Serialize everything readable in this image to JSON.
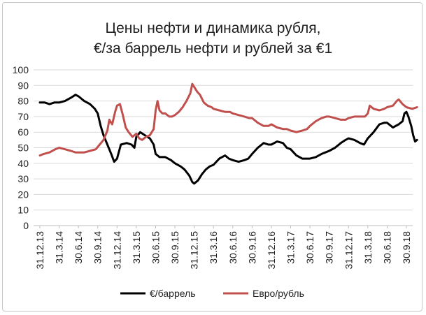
{
  "chart_data": {
    "type": "line",
    "title_line1": "Цены нефти и динамика рубля,",
    "title_line2": "€/за баррель нефти и рублей за  €1",
    "ylim": [
      0,
      100
    ],
    "yticks": [
      0,
      10,
      20,
      30,
      40,
      50,
      60,
      70,
      80,
      90,
      100
    ],
    "grid": "horizontal",
    "legend_position": "bottom",
    "x_tick_labels": [
      "31.12.13",
      "31.3.14",
      "30.6.14",
      "30.9.14",
      "31.12.14",
      "31.3.15",
      "30.6.15",
      "30.9.15",
      "31.12.15",
      "31.3.16",
      "30.6.16",
      "30.9.16",
      "31.12.16",
      "31.3.17",
      "30.6.17",
      "30.9.17",
      "31.12.17",
      "31.3.18",
      "30.6.18",
      "30.9.18"
    ],
    "series": [
      {
        "name": "€/баррель",
        "color": "#000000",
        "points": [
          [
            0,
            79
          ],
          [
            0.25,
            79
          ],
          [
            0.5,
            78
          ],
          [
            0.75,
            79
          ],
          [
            1,
            79
          ],
          [
            1.3,
            80
          ],
          [
            1.6,
            82
          ],
          [
            1.85,
            84
          ],
          [
            2,
            83
          ],
          [
            2.3,
            80
          ],
          [
            2.6,
            78
          ],
          [
            2.85,
            75
          ],
          [
            3,
            72
          ],
          [
            3.15,
            64
          ],
          [
            3.3,
            58
          ],
          [
            3.5,
            52
          ],
          [
            3.7,
            46
          ],
          [
            3.85,
            41
          ],
          [
            4,
            43
          ],
          [
            4.2,
            52
          ],
          [
            4.5,
            53
          ],
          [
            4.75,
            52
          ],
          [
            4.9,
            50
          ],
          [
            5,
            57
          ],
          [
            5.2,
            60
          ],
          [
            5.45,
            58
          ],
          [
            5.7,
            56
          ],
          [
            5.9,
            52
          ],
          [
            6,
            46
          ],
          [
            6.2,
            44
          ],
          [
            6.5,
            44
          ],
          [
            6.8,
            42
          ],
          [
            7,
            40
          ],
          [
            7.3,
            38
          ],
          [
            7.5,
            36
          ],
          [
            7.75,
            32
          ],
          [
            7.9,
            28
          ],
          [
            8,
            27
          ],
          [
            8.2,
            29
          ],
          [
            8.4,
            33
          ],
          [
            8.6,
            36
          ],
          [
            8.8,
            38
          ],
          [
            9,
            39
          ],
          [
            9.3,
            43
          ],
          [
            9.6,
            45
          ],
          [
            9.8,
            43
          ],
          [
            10,
            42
          ],
          [
            10.3,
            41
          ],
          [
            10.6,
            42
          ],
          [
            10.8,
            43
          ],
          [
            11,
            46
          ],
          [
            11.3,
            50
          ],
          [
            11.6,
            53
          ],
          [
            11.85,
            52
          ],
          [
            12,
            52
          ],
          [
            12.3,
            54
          ],
          [
            12.6,
            53
          ],
          [
            12.8,
            50
          ],
          [
            13,
            49
          ],
          [
            13.3,
            45
          ],
          [
            13.6,
            43
          ],
          [
            13.85,
            43
          ],
          [
            14,
            43
          ],
          [
            14.3,
            44
          ],
          [
            14.6,
            46
          ],
          [
            14.8,
            47
          ],
          [
            15,
            48
          ],
          [
            15.3,
            50
          ],
          [
            15.6,
            53
          ],
          [
            15.85,
            55
          ],
          [
            16,
            56
          ],
          [
            16.3,
            55
          ],
          [
            16.6,
            53
          ],
          [
            16.8,
            52
          ],
          [
            17,
            56
          ],
          [
            17.3,
            60
          ],
          [
            17.6,
            65
          ],
          [
            17.85,
            66
          ],
          [
            18,
            66
          ],
          [
            18.3,
            63
          ],
          [
            18.6,
            65
          ],
          [
            18.8,
            67
          ],
          [
            18.9,
            72
          ],
          [
            19,
            73
          ],
          [
            19.1,
            70
          ],
          [
            19.25,
            64
          ],
          [
            19.35,
            58
          ],
          [
            19.45,
            54
          ],
          [
            19.55,
            55
          ]
        ]
      },
      {
        "name": "Евро/рубль",
        "color": "#c0504d",
        "points": [
          [
            0,
            45
          ],
          [
            0.2,
            46
          ],
          [
            0.5,
            47
          ],
          [
            0.8,
            49
          ],
          [
            1,
            50
          ],
          [
            1.3,
            49
          ],
          [
            1.6,
            48
          ],
          [
            1.85,
            47
          ],
          [
            2,
            47
          ],
          [
            2.3,
            47
          ],
          [
            2.6,
            48
          ],
          [
            2.9,
            49
          ],
          [
            3.1,
            52
          ],
          [
            3.3,
            55
          ],
          [
            3.5,
            61
          ],
          [
            3.6,
            68
          ],
          [
            3.75,
            65
          ],
          [
            3.9,
            73
          ],
          [
            4,
            77
          ],
          [
            4.15,
            78
          ],
          [
            4.3,
            71
          ],
          [
            4.45,
            63
          ],
          [
            4.6,
            60
          ],
          [
            4.8,
            57
          ],
          [
            5,
            59
          ],
          [
            5.15,
            56
          ],
          [
            5.3,
            55
          ],
          [
            5.5,
            57
          ],
          [
            5.7,
            58
          ],
          [
            5.9,
            62
          ],
          [
            6,
            74
          ],
          [
            6.1,
            80
          ],
          [
            6.2,
            74
          ],
          [
            6.35,
            72
          ],
          [
            6.5,
            72
          ],
          [
            6.7,
            70
          ],
          [
            6.85,
            70
          ],
          [
            7,
            71
          ],
          [
            7.2,
            73
          ],
          [
            7.4,
            76
          ],
          [
            7.6,
            80
          ],
          [
            7.8,
            85
          ],
          [
            7.9,
            91
          ],
          [
            8,
            89
          ],
          [
            8.15,
            86
          ],
          [
            8.3,
            84
          ],
          [
            8.5,
            79
          ],
          [
            8.7,
            77
          ],
          [
            8.9,
            76
          ],
          [
            9,
            75
          ],
          [
            9.3,
            74
          ],
          [
            9.6,
            73
          ],
          [
            9.85,
            73
          ],
          [
            10,
            72
          ],
          [
            10.3,
            71
          ],
          [
            10.6,
            70
          ],
          [
            10.85,
            69
          ],
          [
            11,
            69
          ],
          [
            11.3,
            66
          ],
          [
            11.6,
            64
          ],
          [
            11.85,
            64
          ],
          [
            12,
            65
          ],
          [
            12.3,
            63
          ],
          [
            12.6,
            62
          ],
          [
            12.8,
            62
          ],
          [
            13,
            61
          ],
          [
            13.3,
            60
          ],
          [
            13.6,
            61
          ],
          [
            13.85,
            62
          ],
          [
            14,
            64
          ],
          [
            14.3,
            67
          ],
          [
            14.6,
            69
          ],
          [
            14.85,
            70
          ],
          [
            15,
            70
          ],
          [
            15.3,
            69
          ],
          [
            15.6,
            68
          ],
          [
            15.85,
            68
          ],
          [
            16,
            69
          ],
          [
            16.3,
            70
          ],
          [
            16.6,
            70
          ],
          [
            16.85,
            70
          ],
          [
            17,
            72
          ],
          [
            17.1,
            77
          ],
          [
            17.3,
            75
          ],
          [
            17.6,
            74
          ],
          [
            17.85,
            75
          ],
          [
            18,
            76
          ],
          [
            18.3,
            77
          ],
          [
            18.5,
            80
          ],
          [
            18.6,
            81
          ],
          [
            18.8,
            78
          ],
          [
            19,
            76
          ],
          [
            19.3,
            75
          ],
          [
            19.55,
            76
          ]
        ]
      }
    ]
  }
}
